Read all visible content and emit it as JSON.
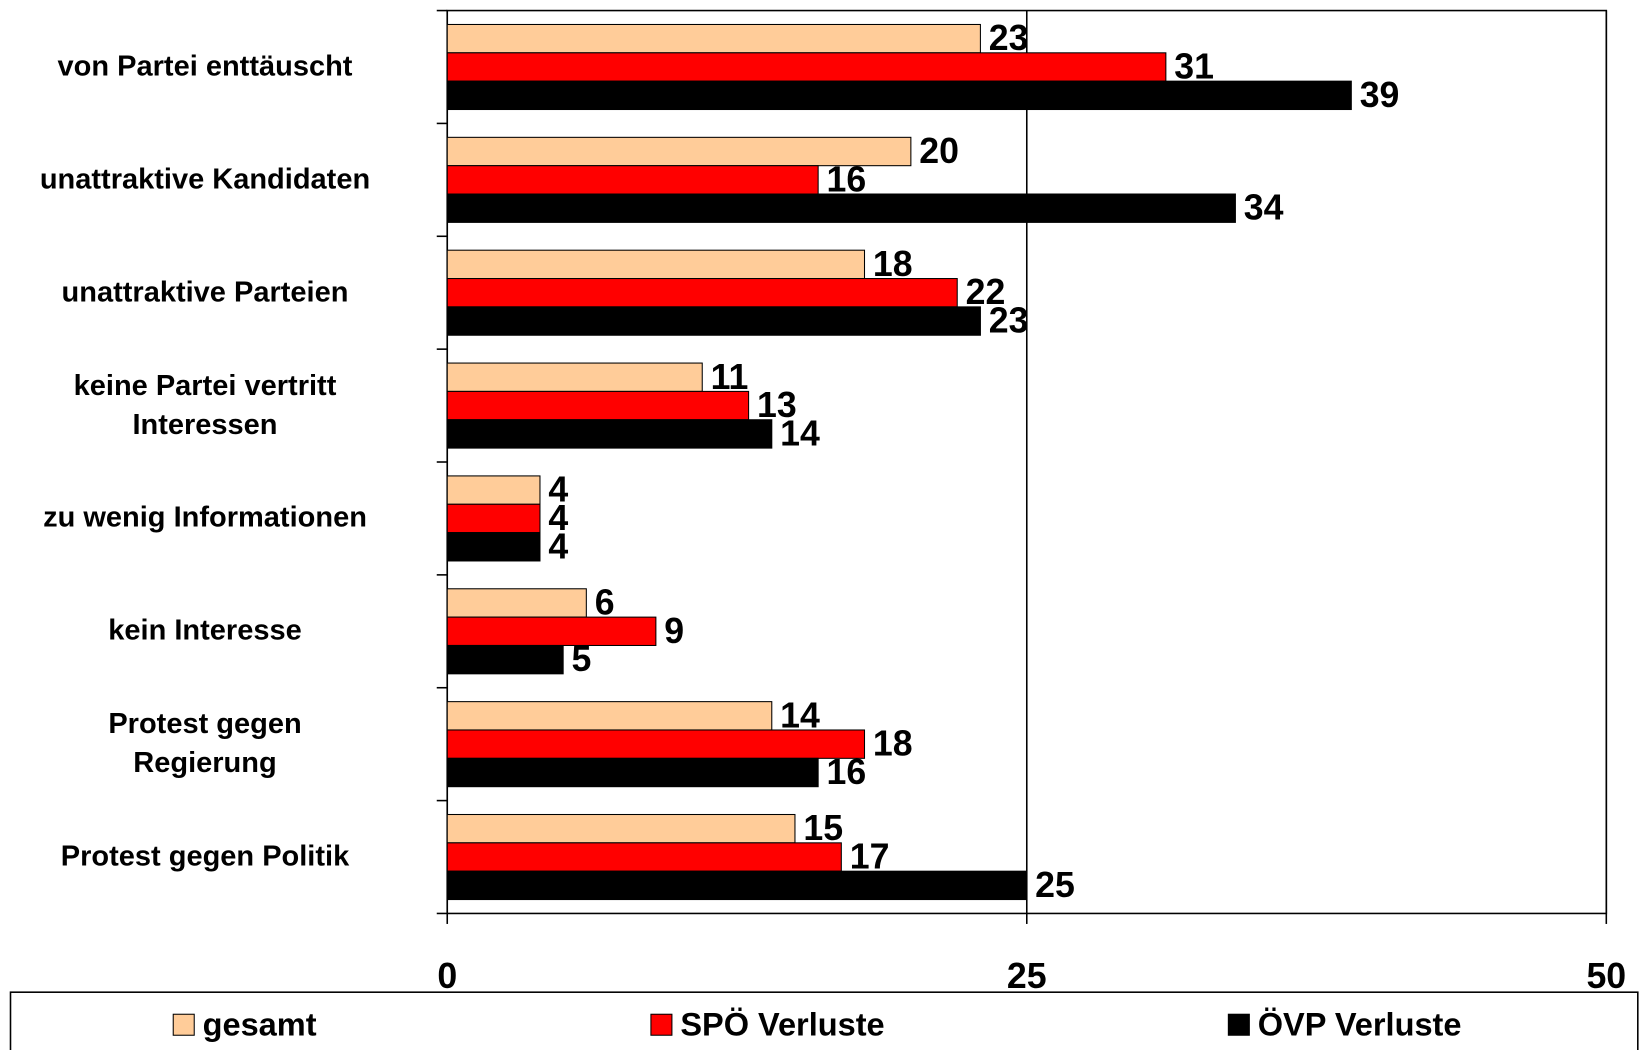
{
  "chart_data": {
    "type": "bar",
    "orientation": "horizontal",
    "categories": [
      "von Partei enttäuscht",
      "unattraktive Kandidaten",
      "unattraktive Parteien",
      "keine Partei vertritt\nInteressen",
      "zu wenig Informationen",
      "kein Interesse",
      "Protest gegen\nRegierung",
      "Protest gegen Politik"
    ],
    "series": [
      {
        "name": "gesamt",
        "color": "#ffcc99",
        "values": [
          23,
          20,
          18,
          11,
          4,
          6,
          14,
          15
        ]
      },
      {
        "name": "SPÖ Verluste",
        "color": "#ff0000",
        "values": [
          31,
          16,
          22,
          13,
          4,
          9,
          18,
          17
        ]
      },
      {
        "name": "ÖVP Verluste",
        "color": "#000000",
        "values": [
          39,
          34,
          23,
          14,
          4,
          5,
          16,
          25
        ]
      }
    ],
    "xlim": [
      0,
      50
    ],
    "xticks": [
      0,
      25,
      50
    ],
    "grid": true,
    "legend": "bottom"
  }
}
